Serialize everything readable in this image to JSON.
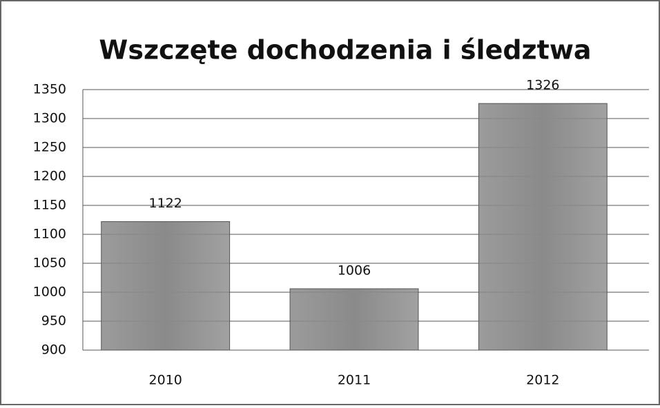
{
  "chart_data": {
    "type": "bar",
    "title": "Wszczęte dochodzenia i śledztwa",
    "categories": [
      "2010",
      "2011",
      "2012"
    ],
    "values": [
      1122,
      1006,
      1326
    ],
    "color": "#8a8a8a",
    "ylim": [
      900,
      1350
    ],
    "yticks": [
      900,
      950,
      1000,
      1050,
      1100,
      1150,
      1200,
      1250,
      1300,
      1350
    ],
    "grid": true
  }
}
